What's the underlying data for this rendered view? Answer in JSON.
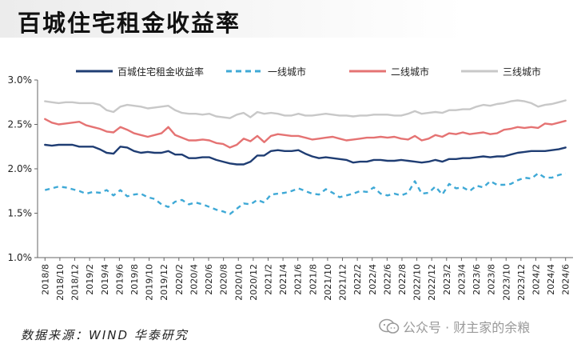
{
  "title": "百城住宅租金收益率",
  "source": "数据来源：WIND 华泰研究",
  "watermark": "公众号 · 财主家的余粮",
  "colors": {
    "series_blue": "#1f3d73",
    "series_lightblue": "#3fa9d6",
    "series_red": "#e57373",
    "series_gray": "#c8c8c8",
    "axis": "#666666",
    "text": "#222222"
  },
  "chart_data": {
    "type": "line",
    "ytick_labels": [
      "1.0%",
      "1.5%",
      "2.0%",
      "2.5%",
      "3.0%"
    ],
    "yticks": [
      1.0,
      1.5,
      2.0,
      2.5,
      3.0
    ],
    "ylim": [
      1.0,
      3.0
    ],
    "xtick_labels": [
      "2018/8",
      "2018/10",
      "2018/12",
      "2019/2",
      "2019/4",
      "2019/6",
      "2019/8",
      "2019/10",
      "2019/12",
      "2020/2",
      "2020/4",
      "2020/6",
      "2020/8",
      "2020/10",
      "2020/12",
      "2021/2",
      "2021/4",
      "2021/6",
      "2021/8",
      "2021/10",
      "2021/12",
      "2022/2",
      "2022/4",
      "2022/6",
      "2022/8",
      "2022/10",
      "2022/12",
      "2023/2",
      "2023/4",
      "2023/6",
      "2023/8",
      "2023/10",
      "2023/12",
      "2024/2",
      "2024/4",
      "2024/6"
    ],
    "grid": false,
    "legend_position": "top",
    "series": [
      {
        "name": "百城住宅租金收益率",
        "style": "solid",
        "color": "#1f3d73",
        "values": [
          2.27,
          2.26,
          2.27,
          2.27,
          2.27,
          2.25,
          2.25,
          2.25,
          2.22,
          2.18,
          2.17,
          2.25,
          2.24,
          2.2,
          2.18,
          2.19,
          2.18,
          2.18,
          2.2,
          2.16,
          2.16,
          2.12,
          2.12,
          2.13,
          2.13,
          2.1,
          2.08,
          2.06,
          2.05,
          2.05,
          2.08,
          2.15,
          2.15,
          2.2,
          2.21,
          2.2,
          2.2,
          2.21,
          2.17,
          2.14,
          2.12,
          2.13,
          2.12,
          2.11,
          2.1,
          2.07,
          2.08,
          2.08,
          2.1,
          2.1,
          2.09,
          2.09,
          2.1,
          2.09,
          2.08,
          2.07,
          2.08,
          2.1,
          2.08,
          2.11,
          2.11,
          2.12,
          2.12,
          2.13,
          2.14,
          2.13,
          2.14,
          2.14,
          2.16,
          2.18,
          2.19,
          2.2,
          2.2,
          2.2,
          2.21,
          2.22,
          2.24
        ]
      },
      {
        "name": "一线城市",
        "style": "dashed",
        "color": "#3fa9d6",
        "values": [
          1.76,
          1.78,
          1.8,
          1.79,
          1.77,
          1.75,
          1.72,
          1.74,
          1.73,
          1.76,
          1.7,
          1.76,
          1.69,
          1.71,
          1.72,
          1.68,
          1.66,
          1.6,
          1.57,
          1.63,
          1.65,
          1.6,
          1.62,
          1.6,
          1.57,
          1.54,
          1.52,
          1.49,
          1.55,
          1.61,
          1.6,
          1.65,
          1.62,
          1.71,
          1.72,
          1.73,
          1.75,
          1.78,
          1.75,
          1.72,
          1.71,
          1.77,
          1.73,
          1.68,
          1.7,
          1.72,
          1.75,
          1.74,
          1.79,
          1.72,
          1.7,
          1.72,
          1.7,
          1.73,
          1.86,
          1.72,
          1.73,
          1.8,
          1.71,
          1.83,
          1.78,
          1.79,
          1.75,
          1.81,
          1.79,
          1.86,
          1.82,
          1.82,
          1.83,
          1.87,
          1.9,
          1.89,
          1.95,
          1.9,
          1.9,
          1.93,
          1.95
        ]
      },
      {
        "name": "二线城市",
        "style": "solid",
        "color": "#e57373",
        "values": [
          2.56,
          2.52,
          2.5,
          2.51,
          2.52,
          2.53,
          2.49,
          2.47,
          2.45,
          2.42,
          2.41,
          2.47,
          2.44,
          2.4,
          2.38,
          2.36,
          2.38,
          2.4,
          2.47,
          2.38,
          2.35,
          2.32,
          2.32,
          2.33,
          2.32,
          2.29,
          2.28,
          2.24,
          2.27,
          2.34,
          2.31,
          2.37,
          2.3,
          2.37,
          2.39,
          2.38,
          2.37,
          2.37,
          2.35,
          2.33,
          2.34,
          2.35,
          2.36,
          2.34,
          2.32,
          2.33,
          2.34,
          2.35,
          2.35,
          2.36,
          2.35,
          2.36,
          2.34,
          2.33,
          2.37,
          2.32,
          2.34,
          2.38,
          2.36,
          2.4,
          2.39,
          2.41,
          2.39,
          2.4,
          2.41,
          2.39,
          2.4,
          2.44,
          2.45,
          2.47,
          2.46,
          2.47,
          2.46,
          2.51,
          2.5,
          2.52,
          2.54
        ]
      },
      {
        "name": "三线城市",
        "style": "solid",
        "color": "#c8c8c8",
        "values": [
          2.76,
          2.75,
          2.74,
          2.75,
          2.75,
          2.74,
          2.74,
          2.74,
          2.72,
          2.66,
          2.64,
          2.7,
          2.72,
          2.71,
          2.7,
          2.68,
          2.69,
          2.7,
          2.71,
          2.66,
          2.63,
          2.62,
          2.62,
          2.61,
          2.62,
          2.59,
          2.58,
          2.57,
          2.61,
          2.63,
          2.58,
          2.64,
          2.62,
          2.63,
          2.62,
          2.6,
          2.6,
          2.62,
          2.6,
          2.6,
          2.61,
          2.62,
          2.61,
          2.6,
          2.6,
          2.59,
          2.6,
          2.6,
          2.61,
          2.61,
          2.61,
          2.6,
          2.6,
          2.62,
          2.65,
          2.62,
          2.63,
          2.64,
          2.63,
          2.66,
          2.66,
          2.67,
          2.67,
          2.7,
          2.72,
          2.71,
          2.73,
          2.74,
          2.76,
          2.77,
          2.76,
          2.74,
          2.7,
          2.72,
          2.73,
          2.75,
          2.77
        ]
      }
    ]
  }
}
